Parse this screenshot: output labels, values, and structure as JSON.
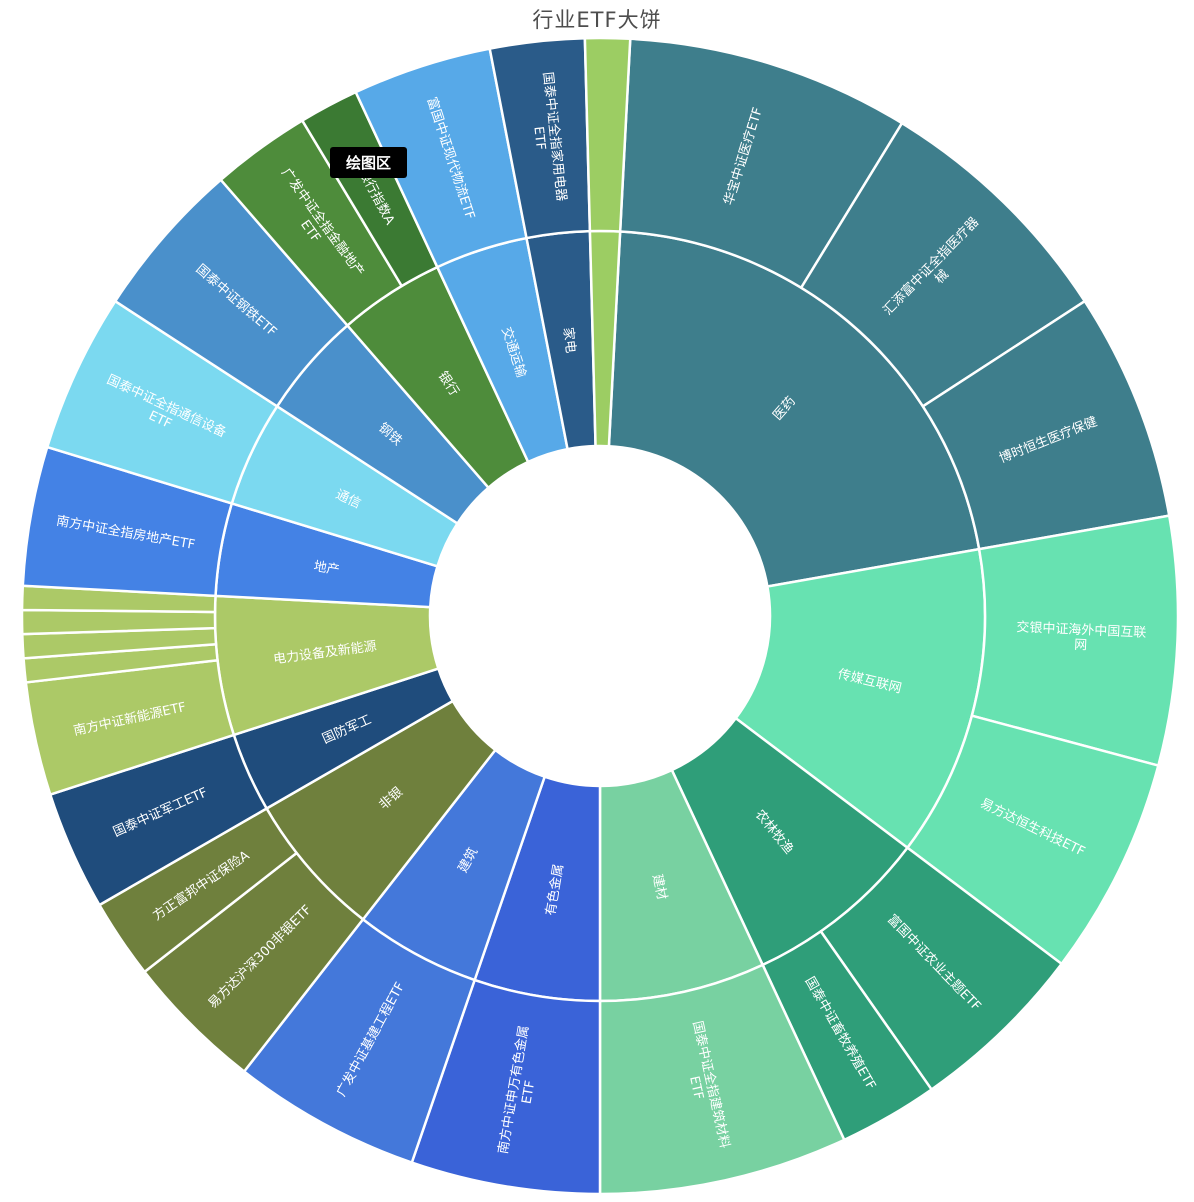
{
  "tooltip": {
    "text": "绘图区"
  },
  "chart_data": {
    "type": "pie",
    "subtype": "sunburst",
    "title": "行业ETF大饼",
    "legend": "none",
    "background": "#ffffff",
    "center": [
      600,
      616
    ],
    "radii": {
      "hole": 170,
      "mid": 385,
      "outer": 578
    },
    "angle_unit": "degrees_clockwise_from_top",
    "rings": [
      "industry",
      "etf"
    ],
    "segments": [
      {
        "label": "医药",
        "start": 3,
        "end": 80,
        "color": "#3E7E8C",
        "children": [
          {
            "label": "华宝中证医疗ETF",
            "start": 3,
            "end": 31.5
          },
          {
            "label": "汇添富中证全指医疗器\n械",
            "start": 31.5,
            "end": 57
          },
          {
            "label": "博时恒生医疗保健",
            "start": 57,
            "end": 80
          }
        ]
      },
      {
        "label": "传媒互联网",
        "start": 80,
        "end": 127,
        "color": "#67E2B1",
        "children": [
          {
            "label": "交银中证海外中国互联\n网",
            "start": 80,
            "end": 105
          },
          {
            "label": "易方达恒生科技ETF",
            "start": 105,
            "end": 127
          }
        ]
      },
      {
        "label": "农林牧渔",
        "start": 127,
        "end": 155,
        "color": "#2F9E79",
        "children": [
          {
            "label": "富国中证农业主题ETF",
            "start": 127,
            "end": 145
          },
          {
            "label": "国泰中证畜牧养殖ETF",
            "start": 145,
            "end": 155
          }
        ]
      },
      {
        "label": "建材",
        "start": 155,
        "end": 180,
        "color": "#78D1A1",
        "children": [
          {
            "label": "国泰中证全指建筑材料\nETF",
            "start": 155,
            "end": 180
          }
        ]
      },
      {
        "label": "有色金属",
        "start": 180,
        "end": 199,
        "color": "#3A63D8",
        "children": [
          {
            "label": "南方中证申万有色金属\nETF",
            "start": 180,
            "end": 199
          }
        ]
      },
      {
        "label": "建筑",
        "start": 199,
        "end": 218,
        "color": "#4478DA",
        "children": [
          {
            "label": "广发中证基建工程ETF",
            "start": 199,
            "end": 218
          }
        ]
      },
      {
        "label": "非银",
        "start": 218,
        "end": 240,
        "color": "#6F803D",
        "children": [
          {
            "label": "易方达沪深300非银ETF",
            "start": 218,
            "end": 232
          },
          {
            "label": "方正富邦中证保险A",
            "start": 232,
            "end": 240
          }
        ]
      },
      {
        "label": "国防军工",
        "start": 240,
        "end": 252,
        "color": "#1F4C7C",
        "children": [
          {
            "label": "国泰中证军工ETF",
            "start": 240,
            "end": 252
          }
        ]
      },
      {
        "label": "电力设备及新能源",
        "start": 252,
        "end": 273,
        "color": "#ACC967",
        "children": [
          {
            "label": "南方中证新能源ETF",
            "start": 252,
            "end": 263.4
          },
          {
            "label": "",
            "start": 263.4,
            "end": 265.8
          },
          {
            "label": "",
            "start": 265.8,
            "end": 268.2
          },
          {
            "label": "",
            "start": 268.2,
            "end": 270.6
          },
          {
            "label": "",
            "start": 270.6,
            "end": 273
          }
        ]
      },
      {
        "label": "地产",
        "start": 273,
        "end": 287,
        "color": "#4482E5",
        "children": [
          {
            "label": "南方中证全指房地产ETF",
            "start": 273,
            "end": 287
          }
        ]
      },
      {
        "label": "通信",
        "start": 287,
        "end": 303,
        "color": "#7BD9F0",
        "children": [
          {
            "label": "国泰中证全指通信设备\nETF",
            "start": 287,
            "end": 303
          }
        ]
      },
      {
        "label": "钢铁",
        "start": 303,
        "end": 319,
        "color": "#4A90CB",
        "children": [
          {
            "label": "国泰中证钢铁ETF",
            "start": 303,
            "end": 319
          }
        ]
      },
      {
        "label": "银行",
        "start": 319,
        "end": 335,
        "color": "#4E8C3B",
        "children": [
          {
            "label": "广发中证全指金融地产\nETF",
            "start": 319,
            "end": 329
          },
          {
            "label": "港银行指数A",
            "start": 329,
            "end": 335,
            "color": "#3B7A33"
          }
        ]
      },
      {
        "label": "交通运输",
        "start": 335,
        "end": 349,
        "color": "#57A9E8",
        "children": [
          {
            "label": "富国中证现代物流ETF",
            "start": 335,
            "end": 349
          }
        ]
      },
      {
        "label": "家电",
        "start": 349,
        "end": 358.5,
        "color": "#2A5B89",
        "children": [
          {
            "label": "国泰中证全指家用电器\nETF",
            "start": 349,
            "end": 358.5
          }
        ]
      },
      {
        "label": "",
        "start": 358.5,
        "end": 363,
        "color": "#9CCD63",
        "children": [
          {
            "label": "",
            "start": 358.5,
            "end": 363
          }
        ]
      }
    ]
  }
}
